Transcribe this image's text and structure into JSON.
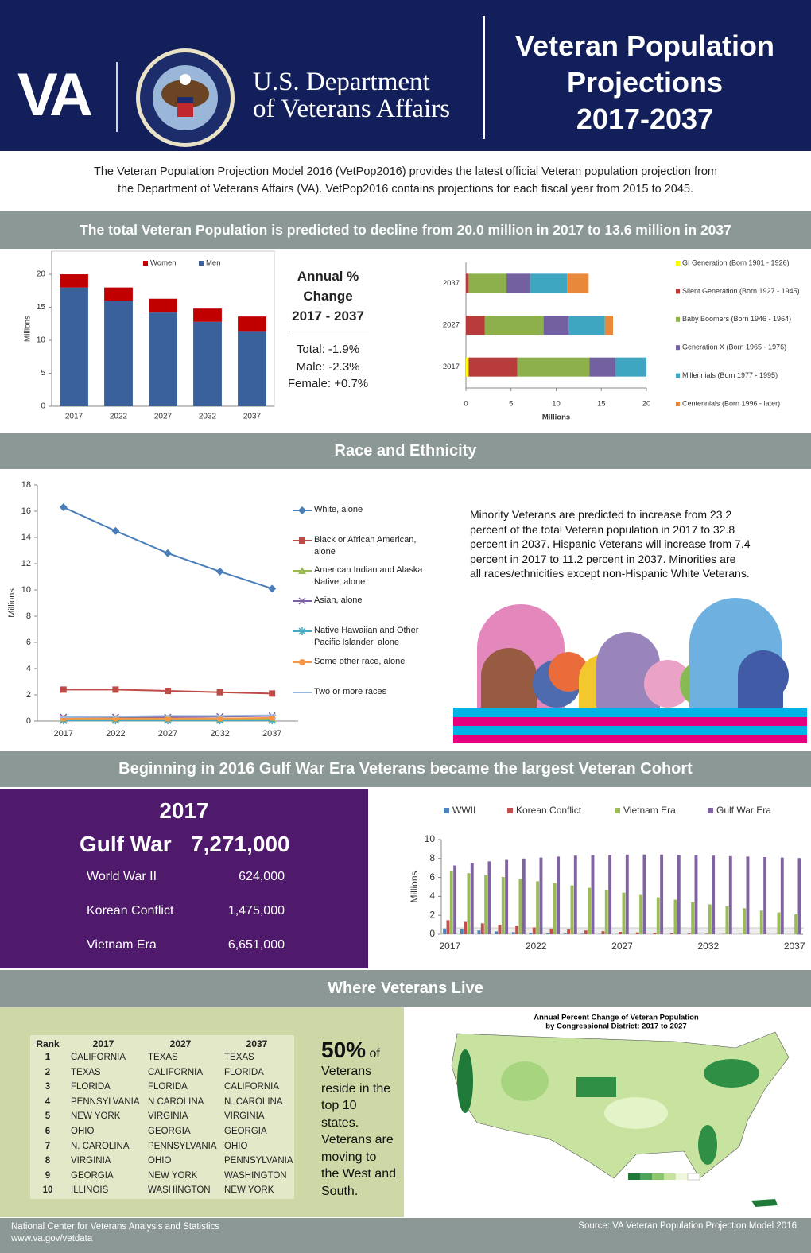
{
  "header": {
    "logo": "VA",
    "department": [
      "U.S. Department",
      "of Veterans Affairs"
    ],
    "title": [
      "Veteran Population",
      "Projections",
      "2017-2037"
    ]
  },
  "intro": [
    "The Veteran Population Projection Model 2016 (VetPop2016) provides the latest official Veteran population projection from",
    "the Department of Veterans Affairs (VA).  VetPop2016 contains projections for each fiscal year from 2015 to 2045."
  ],
  "sections": [
    "The total Veteran Population is predicted to decline from 20.0 million in 2017 to 13.6 million in 2037",
    "Race and Ethnicity",
    "Beginning in 2016 Gulf War Era Veterans became the largest Veteran Cohort",
    "Where Veterans Live"
  ],
  "annual_change": {
    "title": [
      "Annual %",
      "Change",
      "2017 - 2037"
    ],
    "lines": [
      "Total: -1.9%",
      "Male: -2.3%",
      "Female: +0.7%"
    ]
  },
  "minority_text": [
    "Minority Veterans are predicted to increase from 23.2",
    "percent of the total Veteran population in 2017 to 32.8",
    "percent in 2037.  Hispanic Veterans will increase from 7.4",
    "percent in 2017 to 11.2 percent in 2037.  Minorities are",
    "all races/ethnicities except non-Hispanic White Veterans."
  ],
  "cohort": {
    "year": "2017",
    "lead": [
      "Gulf War",
      "7,271,000"
    ],
    "rows": [
      [
        "World War II",
        "624,000"
      ],
      [
        "Korean Conflict",
        "1,475,000"
      ],
      [
        "Vietnam Era",
        "6,651,000"
      ]
    ]
  },
  "states": {
    "header": [
      "Rank",
      "2017",
      "2027",
      "2037"
    ],
    "rows": [
      [
        "1",
        "CALIFORNIA",
        "TEXAS",
        "TEXAS"
      ],
      [
        "2",
        "TEXAS",
        "CALIFORNIA",
        "FLORIDA"
      ],
      [
        "3",
        "FLORIDA",
        "FLORIDA",
        "CALIFORNIA"
      ],
      [
        "4",
        "PENNSYLVANIA",
        "N CAROLINA",
        "N. CAROLINA"
      ],
      [
        "5",
        "NEW YORK",
        "VIRGINIA",
        "VIRGINIA"
      ],
      [
        "6",
        "OHIO",
        "GEORGIA",
        "GEORGIA"
      ],
      [
        "7",
        "N. CAROLINA",
        "PENNSYLVANIA",
        "OHIO"
      ],
      [
        "8",
        "VIRGINIA",
        "OHIO",
        "PENNSYLVANIA"
      ],
      [
        "9",
        "GEORGIA",
        "NEW YORK",
        "WASHINGTON"
      ],
      [
        "10",
        "ILLINOIS",
        "WASHINGTON",
        "NEW YORK"
      ]
    ]
  },
  "states_note": {
    "big": "50%",
    "of": "of",
    "lines": [
      "Veterans",
      "reside in the",
      "top 10",
      "states.",
      "Veterans are",
      "moving to",
      "the West and",
      "South."
    ]
  },
  "map": {
    "title": [
      "Annual Percent Change of Veteran Population",
      "by Congressional District: 2017 to 2027"
    ]
  },
  "footer": {
    "left": [
      "National Center for Veterans Analysis and Statistics",
      "www.va.gov/vetdata"
    ],
    "right": "Source:  VA Veteran Population Projection Model 2016"
  },
  "chart_data": [
    {
      "type": "stacked-bar",
      "categories": [
        "2017",
        "2022",
        "2027",
        "2032",
        "2037"
      ],
      "series": [
        {
          "name": "Men",
          "color": "#3a619b",
          "values": [
            18.0,
            16.0,
            14.2,
            12.8,
            11.4
          ]
        },
        {
          "name": "Women",
          "color": "#c00000",
          "values": [
            2.0,
            2.0,
            2.1,
            2.0,
            2.2
          ]
        }
      ],
      "ylim": [
        0,
        23.5
      ],
      "yticks": [
        0,
        5,
        10,
        15,
        20
      ],
      "ylabel": "Millions",
      "legend": "top"
    },
    {
      "type": "stacked-barh",
      "categories": [
        "2017",
        "2027",
        "2037"
      ],
      "series": [
        {
          "name": "GI Generation (Born 1901 - 1926)",
          "color": "#ffff00",
          "values": [
            0.3,
            0,
            0
          ]
        },
        {
          "name": "Silent Generation (Born 1927 - 1945)",
          "color": "#b83c3c",
          "values": [
            5.4,
            2.1,
            0.3
          ]
        },
        {
          "name": "Baby Boomers (Born 1946 - 1964)",
          "color": "#8db04c",
          "values": [
            8.0,
            6.5,
            4.2
          ]
        },
        {
          "name": "Generation X (Born 1965 - 1976)",
          "color": "#7360a0",
          "values": [
            2.9,
            2.8,
            2.6
          ]
        },
        {
          "name": "Millennials (Born 1977 - 1995)",
          "color": "#3fa6c2",
          "values": [
            3.4,
            4.0,
            4.1
          ]
        },
        {
          "name": "Centennials (Born 1996 - later)",
          "color": "#e8883a",
          "values": [
            0,
            0.9,
            2.4
          ]
        }
      ],
      "xlim": [
        0,
        20
      ],
      "xticks": [
        0,
        5,
        10,
        15,
        20
      ],
      "xlabel": "Millions",
      "legend": "right"
    },
    {
      "type": "line",
      "categories": [
        "2017",
        "2022",
        "2027",
        "2032",
        "2037"
      ],
      "series": [
        {
          "name": "White, alone",
          "color": "#4a7ebb",
          "values": [
            16.3,
            14.5,
            12.8,
            11.4,
            10.1
          ]
        },
        {
          "name": "Black or African American, alone",
          "color": "#be4b48",
          "values": [
            2.4,
            2.4,
            2.3,
            2.2,
            2.1
          ]
        },
        {
          "name": "American Indian and Alaska Native, alone",
          "color": "#98b954",
          "values": [
            0.15,
            0.15,
            0.15,
            0.15,
            0.15
          ]
        },
        {
          "name": "Asian, alone",
          "color": "#7d60a0",
          "values": [
            0.3,
            0.3,
            0.3,
            0.35,
            0.4
          ]
        },
        {
          "name": "Native Hawaiian and Other Pacific Islander, alone",
          "color": "#46aac5",
          "values": [
            0.05,
            0.05,
            0.05,
            0.05,
            0.05
          ]
        },
        {
          "name": "Some other race, alone",
          "color": "#f79646",
          "values": [
            0.2,
            0.2,
            0.2,
            0.2,
            0.25
          ]
        },
        {
          "name": "Two or more races",
          "color": "#9bb7d9",
          "values": [
            0.3,
            0.35,
            0.4,
            0.4,
            0.45
          ]
        }
      ],
      "ylim": [
        0,
        18
      ],
      "yticks": [
        0,
        2,
        4,
        6,
        8,
        10,
        12,
        14,
        16,
        18
      ],
      "ylabel": "Millions",
      "legend": "right"
    },
    {
      "type": "bar",
      "categories": [
        "2017",
        null,
        null,
        null,
        null,
        "2022",
        null,
        null,
        null,
        null,
        "2027",
        null,
        null,
        null,
        null,
        "2032",
        null,
        null,
        null,
        null,
        "2037"
      ],
      "series": [
        {
          "name": "WWII",
          "color": "#4f81bd",
          "values": [
            0.62,
            0.5,
            0.4,
            0.3,
            0.22,
            0.15,
            0.1,
            0.07,
            0.05,
            0.03,
            0.02,
            0.01,
            0.01,
            0,
            0,
            0,
            0,
            0,
            0,
            0,
            0
          ]
        },
        {
          "name": "Korean Conflict",
          "color": "#c0504d",
          "values": [
            1.48,
            1.3,
            1.15,
            1.0,
            0.85,
            0.72,
            0.6,
            0.5,
            0.4,
            0.32,
            0.25,
            0.19,
            0.14,
            0.1,
            0.07,
            0.05,
            0.03,
            0.02,
            0.01,
            0.01,
            0
          ]
        },
        {
          "name": "Vietnam Era",
          "color": "#9bbb59",
          "values": [
            6.65,
            6.45,
            6.25,
            6.05,
            5.85,
            5.6,
            5.4,
            5.15,
            4.9,
            4.65,
            4.4,
            4.15,
            3.9,
            3.65,
            3.4,
            3.15,
            2.95,
            2.75,
            2.5,
            2.3,
            2.1
          ]
        },
        {
          "name": "Gulf War Era",
          "color": "#8064a2",
          "values": [
            7.27,
            7.5,
            7.7,
            7.85,
            8.0,
            8.1,
            8.2,
            8.3,
            8.35,
            8.4,
            8.42,
            8.43,
            8.42,
            8.4,
            8.35,
            8.3,
            8.25,
            8.2,
            8.15,
            8.1,
            8.05
          ]
        }
      ],
      "ylim": [
        0,
        10
      ],
      "yticks": [
        0,
        2,
        4,
        6,
        8,
        10
      ],
      "ylabel": "Millions",
      "legend": "top"
    }
  ]
}
